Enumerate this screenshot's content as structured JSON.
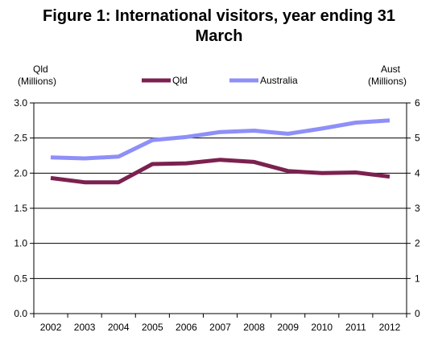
{
  "chart_data": {
    "type": "line",
    "title": "Figure 1: International visitors, year ending 31 March",
    "title_lines": [
      "Figure 1: International visitors, year ending 31",
      "March"
    ],
    "ylabel_left_lines": [
      "Qld",
      "(Millions)"
    ],
    "ylabel_right_lines": [
      "Aust",
      "(Millions)"
    ],
    "categories": [
      "2002",
      "2003",
      "2004",
      "2005",
      "2006",
      "2007",
      "2008",
      "2009",
      "2010",
      "2011",
      "2012"
    ],
    "ylim_left": [
      0,
      3.0
    ],
    "yticks_left": [
      "0.0",
      "0.5",
      "1.0",
      "1.5",
      "2.0",
      "2.5",
      "3.0"
    ],
    "ylim_right": [
      0,
      6
    ],
    "yticks_right": [
      "0",
      "1",
      "2",
      "3",
      "4",
      "5",
      "6"
    ],
    "grid": "horizontal",
    "legend_position": "top-center",
    "series": [
      {
        "name": "Qld",
        "axis": "left",
        "color": "#7b2150",
        "values": [
          1.93,
          1.87,
          1.87,
          2.13,
          2.14,
          2.19,
          2.16,
          2.03,
          2.0,
          2.01,
          1.95
        ]
      },
      {
        "name": "Australia",
        "axis": "right",
        "color": "#8f8ff8",
        "values": [
          4.45,
          4.42,
          4.47,
          4.94,
          5.03,
          5.17,
          5.21,
          5.12,
          5.27,
          5.44,
          5.5
        ]
      }
    ]
  }
}
